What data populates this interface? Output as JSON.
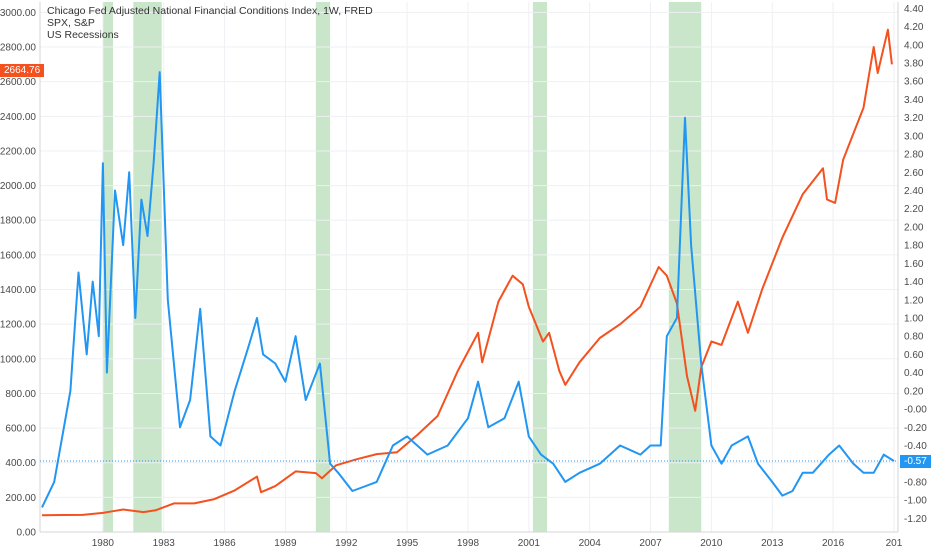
{
  "chart_data": {
    "type": "line",
    "title": "Chicago Fed Adjusted National Financial Conditions Index, 1W, FRED",
    "legend": [
      "SPX, S&P",
      "US Recessions"
    ],
    "x_ticks": [
      "1980",
      "1983",
      "1986",
      "1989",
      "1992",
      "1995",
      "1998",
      "2001",
      "2004",
      "2007",
      "2010",
      "2013",
      "2016",
      "201"
    ],
    "x_range": [
      1976.9,
      2019.2
    ],
    "left_axis": {
      "ylim": [
        0,
        3060
      ],
      "ticks": [
        "0.00",
        "200.00",
        "400.00",
        "600.00",
        "800.00",
        "1000.00",
        "1200.00",
        "1400.00",
        "1600.00",
        "1800.00",
        "2000.00",
        "2200.00",
        "2400.00",
        "2600.00",
        "2800.00",
        "3000.00"
      ]
    },
    "right_axis": {
      "ylim": [
        -1.35,
        4.47
      ],
      "ticks": [
        "-1.20",
        "-1.00",
        "-0.80",
        "-0.60",
        "-0.40",
        "-0.20",
        "-0.00",
        "0.20",
        "0.40",
        "0.60",
        "0.80",
        "1.00",
        "1.20",
        "1.40",
        "1.60",
        "1.80",
        "2.00",
        "2.20",
        "2.40",
        "2.60",
        "2.80",
        "3.00",
        "3.20",
        "3.40",
        "3.60",
        "3.80",
        "4.00",
        "4.20",
        "4.40"
      ]
    },
    "recessions": [
      [
        1980.0,
        1980.5
      ],
      [
        1981.5,
        1982.9
      ],
      [
        1990.5,
        1991.2
      ],
      [
        2001.2,
        2001.9
      ],
      [
        2007.9,
        2009.5
      ]
    ],
    "series": [
      {
        "name": "SPX, S&P",
        "axis": "left",
        "color": "#f4511e",
        "x": [
          1977.0,
          1978.0,
          1979.0,
          1980.0,
          1980.5,
          1981.0,
          1982.0,
          1982.6,
          1983.5,
          1984.5,
          1985.5,
          1986.5,
          1987.6,
          1987.8,
          1988.5,
          1989.5,
          1990.5,
          1990.8,
          1991.5,
          1992.5,
          1993.5,
          1994.5,
          1995.5,
          1996.5,
          1997.5,
          1998.5,
          1998.7,
          1999.5,
          2000.2,
          2000.7,
          2001.0,
          2001.7,
          2002.0,
          2002.5,
          2002.8,
          2003.5,
          2004.5,
          2005.5,
          2006.5,
          2007.4,
          2007.8,
          2008.3,
          2008.8,
          2009.2,
          2009.5,
          2010.0,
          2010.5,
          2011.3,
          2011.8,
          2012.5,
          2013.5,
          2014.5,
          2015.5,
          2015.7,
          2016.1,
          2016.5,
          2017.5,
          2018.0,
          2018.2,
          2018.7,
          2018.9
        ],
        "y": [
          97,
          98,
          99,
          110,
          120,
          130,
          115,
          125,
          165,
          165,
          190,
          240,
          320,
          230,
          265,
          350,
          340,
          310,
          385,
          420,
          450,
          460,
          560,
          670,
          930,
          1150,
          980,
          1330,
          1480,
          1430,
          1300,
          1100,
          1150,
          930,
          850,
          980,
          1120,
          1200,
          1300,
          1530,
          1480,
          1320,
          900,
          700,
          950,
          1100,
          1080,
          1330,
          1150,
          1400,
          1700,
          1950,
          2100,
          1920,
          1900,
          2150,
          2450,
          2800,
          2650,
          2900,
          2700
        ]
      },
      {
        "name": "Chicago Fed Adjusted National Financial Conditions Index",
        "axis": "right",
        "color": "#2196f3",
        "x": [
          1977.0,
          1977.6,
          1978.0,
          1978.4,
          1978.8,
          1979.2,
          1979.5,
          1979.8,
          1980.0,
          1980.2,
          1980.6,
          1981.0,
          1981.3,
          1981.6,
          1981.9,
          1982.2,
          1982.5,
          1982.8,
          1983.2,
          1983.8,
          1984.3,
          1984.8,
          1985.3,
          1985.8,
          1986.5,
          1987.2,
          1987.6,
          1987.9,
          1988.5,
          1989.0,
          1989.5,
          1990.0,
          1990.7,
          1991.2,
          1991.6,
          1992.3,
          1992.9,
          1993.5,
          1994.3,
          1995.0,
          1996.0,
          1997.0,
          1998.0,
          1998.5,
          1999.0,
          1999.8,
          2000.5,
          2001.0,
          2001.6,
          2002.2,
          2002.8,
          2003.5,
          2004.5,
          2005.5,
          2006.5,
          2007.0,
          2007.5,
          2007.8,
          2008.3,
          2008.7,
          2009.0,
          2009.5,
          2010.0,
          2010.5,
          2011.0,
          2011.8,
          2012.3,
          2013.0,
          2013.5,
          2014.0,
          2014.5,
          2015.0,
          2015.8,
          2016.3,
          2017.0,
          2017.5,
          2018.0,
          2018.5,
          2019.0
        ],
        "y": [
          -1.08,
          -0.8,
          -0.3,
          0.2,
          1.5,
          0.6,
          1.4,
          0.8,
          2.7,
          0.4,
          2.4,
          1.8,
          2.6,
          1.0,
          2.3,
          1.9,
          2.7,
          3.7,
          1.2,
          -0.2,
          0.1,
          1.1,
          -0.3,
          -0.4,
          0.2,
          0.7,
          1.0,
          0.6,
          0.5,
          0.3,
          0.8,
          0.1,
          0.5,
          -0.6,
          -0.7,
          -0.9,
          -0.85,
          -0.8,
          -0.4,
          -0.3,
          -0.5,
          -0.4,
          -0.1,
          0.3,
          -0.2,
          -0.1,
          0.3,
          -0.3,
          -0.5,
          -0.6,
          -0.8,
          -0.7,
          -0.6,
          -0.4,
          -0.5,
          -0.4,
          -0.4,
          0.8,
          1.0,
          3.2,
          1.8,
          0.5,
          -0.4,
          -0.6,
          -0.4,
          -0.3,
          -0.6,
          -0.8,
          -0.95,
          -0.9,
          -0.7,
          -0.7,
          -0.5,
          -0.4,
          -0.6,
          -0.7,
          -0.7,
          -0.5,
          -0.57
        ]
      }
    ],
    "last_values": {
      "spx": "2664.76",
      "nfci": "-0.57"
    },
    "grid": true
  }
}
